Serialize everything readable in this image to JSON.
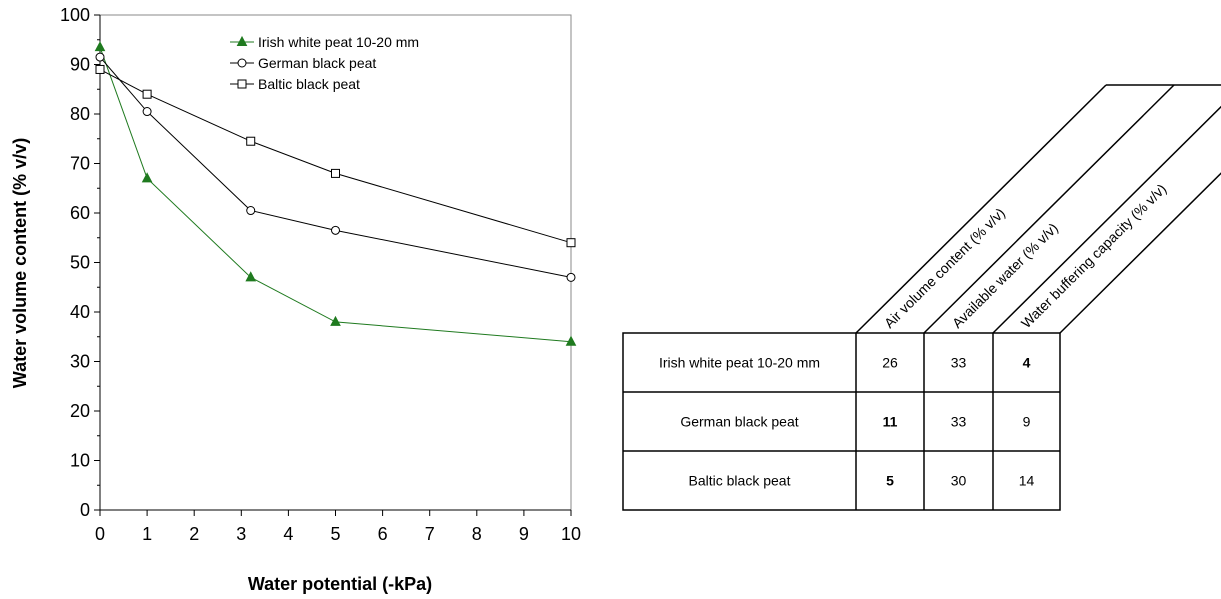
{
  "chart_data": {
    "type": "line",
    "xlabel": "Water potential (-kPa)",
    "ylabel": "Water volume content (% v/v)",
    "xlim": [
      0,
      10
    ],
    "ylim": [
      0,
      100
    ],
    "xticks": [
      0,
      1,
      2,
      3,
      4,
      5,
      6,
      7,
      8,
      9,
      10
    ],
    "yticks": [
      0,
      10,
      20,
      30,
      40,
      50,
      60,
      70,
      80,
      90,
      100
    ],
    "grid": false,
    "legend_position": "top-center",
    "series": [
      {
        "name": "Irish white peat 10-20 mm",
        "marker": "filled-triangle",
        "color": "#1f7a1f",
        "x": [
          0,
          1,
          3.2,
          5,
          10
        ],
        "y": [
          93.5,
          67,
          47,
          38,
          34
        ]
      },
      {
        "name": "German black peat",
        "marker": "open-circle",
        "color": "#000000",
        "x": [
          0,
          1,
          3.2,
          5,
          10
        ],
        "y": [
          91.5,
          80.5,
          60.5,
          56.5,
          47
        ]
      },
      {
        "name": "Baltic black peat",
        "marker": "open-square",
        "color": "#000000",
        "x": [
          0,
          1,
          3.2,
          5,
          10
        ],
        "y": [
          89,
          84,
          74.5,
          68,
          54
        ]
      }
    ]
  },
  "table": {
    "columns": [
      "Air volume content (% v/v)",
      "Available water (% v/v)",
      "Water buffering capacity (% v/v)"
    ],
    "rows": [
      {
        "label": "Irish white peat 10-20 mm",
        "values": [
          "26",
          "33",
          "4"
        ],
        "bold": [
          false,
          false,
          true
        ]
      },
      {
        "label": "German black peat",
        "values": [
          "11",
          "33",
          "9"
        ],
        "bold": [
          true,
          false,
          false
        ]
      },
      {
        "label": "Baltic black peat",
        "values": [
          "5",
          "30",
          "14"
        ],
        "bold": [
          true,
          false,
          false
        ]
      }
    ]
  }
}
